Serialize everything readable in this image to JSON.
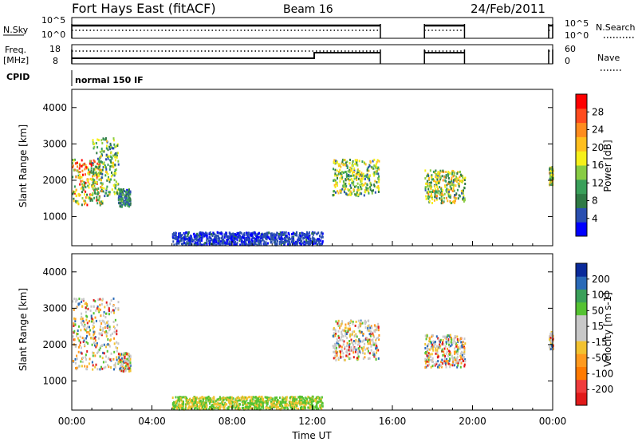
{
  "header": {
    "title": "Fort Hays East (fitACF)",
    "beam": "Beam 16",
    "date": "24/Feb/2011"
  },
  "status_panels": {
    "nsky_label": "N.Sky",
    "nsky_ticks": [
      "10^5",
      "10^0"
    ],
    "nsearch_label": "N.Search",
    "freq_label": "Freq.",
    "freq_unit": "[MHz]",
    "freq_ticks": [
      "18",
      "8"
    ],
    "nave_label": "Nave",
    "nave_ticks": [
      "60",
      "0"
    ],
    "cpid_label": "CPID",
    "cpid_text": "normal 150 IF"
  },
  "colors": {
    "power": [
      "#0000ff",
      "#2a4fb0",
      "#2f7a45",
      "#3aa05a",
      "#88cc44",
      "#f6f01a",
      "#ffbf1e",
      "#ff8c1e",
      "#ff4b1e",
      "#ff0000"
    ],
    "velocity": [
      "#e11a1a",
      "#f03c3c",
      "#ff7a00",
      "#ff9a1e",
      "#f2c230",
      "#c8c8c8",
      "#c8c8c8",
      "#55c232",
      "#3aa05a",
      "#2a6ab8",
      "#0a2a9a"
    ],
    "velocity_points": [
      "#c8c8c8",
      "#c8c8c8",
      "#c8c8c8",
      "#f2c230",
      "#ff9a1e",
      "#55c232",
      "#2a6ab8",
      "#e11a1a"
    ]
  },
  "chart_data": [
    {
      "type": "heatmap",
      "name": "power",
      "xlabel": "",
      "ylabel": "Slant Range [km]",
      "xlim": [
        "00:00",
        "24:00"
      ],
      "ylim": [
        200,
        4500
      ],
      "yticks": [
        1000,
        2000,
        3000,
        4000
      ],
      "colorbar": {
        "label": "Power [dB]",
        "ticks": [
          4,
          8,
          12,
          16,
          20,
          24,
          28
        ],
        "range": [
          0,
          32
        ]
      },
      "patches": [
        {
          "t": [
            0.0,
            1.5
          ],
          "r": [
            1350,
            2600
          ],
          "intensity": 0.7
        },
        {
          "t": [
            1.0,
            2.3
          ],
          "r": [
            1600,
            3200
          ],
          "intensity": 0.45
        },
        {
          "t": [
            2.3,
            2.9
          ],
          "r": [
            1300,
            1800
          ],
          "intensity": 0.3
        },
        {
          "t": [
            5.0,
            12.5
          ],
          "r": [
            250,
            600
          ],
          "intensity": 0.15
        },
        {
          "t": [
            13.0,
            15.3
          ],
          "r": [
            1600,
            2600
          ],
          "intensity": 0.5
        },
        {
          "t": [
            17.6,
            19.6
          ],
          "r": [
            1400,
            2300
          ],
          "intensity": 0.55
        },
        {
          "t": [
            23.8,
            24.0
          ],
          "r": [
            1900,
            2400
          ],
          "intensity": 0.55
        }
      ]
    },
    {
      "type": "heatmap",
      "name": "velocity",
      "xlabel": "Time UT",
      "ylabel": "Slant Range [km]",
      "xlim": [
        "00:00",
        "24:00"
      ],
      "xticks": [
        "00:00",
        "04:00",
        "08:00",
        "12:00",
        "16:00",
        "20:00",
        "00:00"
      ],
      "ylim": [
        200,
        4500
      ],
      "yticks": [
        1000,
        2000,
        3000,
        4000
      ],
      "colorbar": {
        "label": "Velocity [m s-1]",
        "ticks": [
          200,
          100,
          50,
          15,
          -15,
          -50,
          -100,
          -200
        ]
      },
      "patches": [
        {
          "t": [
            0.0,
            2.3
          ],
          "r": [
            1350,
            3300
          ],
          "velocity": -5
        },
        {
          "t": [
            2.3,
            2.9
          ],
          "r": [
            1300,
            1800
          ],
          "velocity": 0
        },
        {
          "t": [
            5.0,
            12.5
          ],
          "r": [
            250,
            600
          ],
          "velocity": 40
        },
        {
          "t": [
            13.0,
            15.3
          ],
          "r": [
            1600,
            2700
          ],
          "velocity": 0
        },
        {
          "t": [
            17.6,
            19.6
          ],
          "r": [
            1400,
            2300
          ],
          "velocity": 0
        },
        {
          "t": [
            23.8,
            24.0
          ],
          "r": [
            1900,
            2400
          ],
          "velocity": 0
        }
      ]
    }
  ]
}
